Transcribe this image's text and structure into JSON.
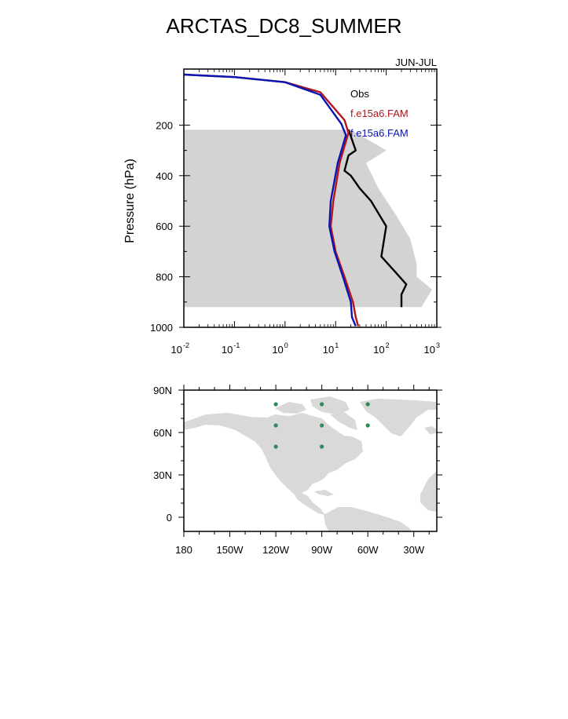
{
  "title": "ARCTAS_DC8_SUMMER",
  "chart_data": [
    {
      "type": "line",
      "title": "",
      "subtitle": "JUN-JUL",
      "xlabel": "",
      "ylabel": "Pressure (hPa)",
      "xscale": "log",
      "xlim": [
        0.01,
        1000
      ],
      "ylim": [
        1000,
        0
      ],
      "xticks": [
        0.01,
        0.1,
        1,
        10,
        100,
        1000
      ],
      "xtick_labels": [
        {
          "base": "10",
          "exp": "-2"
        },
        {
          "base": "10",
          "exp": "-1"
        },
        {
          "base": "10",
          "exp": "0"
        },
        {
          "base": "10",
          "exp": "1"
        },
        {
          "base": "10",
          "exp": "2"
        },
        {
          "base": "10",
          "exp": "3"
        }
      ],
      "yticks": [
        200,
        400,
        600,
        800,
        1000
      ],
      "legend": [
        "Obs",
        "f.e15a6.FAM",
        "f.e15a6.FAM"
      ],
      "legend_position": "top-right",
      "shaded_range": {
        "name": "Obs range",
        "color": "#d3d3d3",
        "p": [
          218,
          300,
          350,
          450,
          550,
          650,
          750,
          800,
          850,
          920
        ],
        "min": [
          0.01,
          0.01,
          0.01,
          0.01,
          0.01,
          0.01,
          0.01,
          0.01,
          0.01,
          0.01
        ],
        "max": [
          20,
          100,
          40,
          70,
          150,
          300,
          400,
          400,
          800,
          500
        ]
      },
      "series": [
        {
          "name": "Obs",
          "color": "#000000",
          "x": [
            18,
            25,
            18,
            15,
            20,
            30,
            50,
            100,
            80,
            150,
            250,
            200,
            200
          ],
          "p": [
            218,
            300,
            320,
            380,
            400,
            450,
            500,
            600,
            720,
            780,
            830,
            870,
            920
          ]
        },
        {
          "name": "f.e15a6.FAM",
          "color": "#b0161d",
          "x": [
            0.01,
            0.1,
            1,
            5,
            15,
            18,
            12,
            9,
            8,
            10,
            15,
            22,
            25,
            28
          ],
          "p": [
            0,
            10,
            30,
            70,
            180,
            230,
            350,
            500,
            600,
            700,
            800,
            900,
            960,
            995
          ]
        },
        {
          "name": "f.e15a6.FAM",
          "color": "#0a14b4",
          "x": [
            0.01,
            0.1,
            1,
            5,
            13,
            16,
            11,
            8,
            7.5,
            9.5,
            14,
            20,
            21,
            25
          ],
          "p": [
            0,
            10,
            30,
            80,
            195,
            240,
            350,
            500,
            600,
            700,
            800,
            900,
            960,
            995
          ]
        }
      ]
    },
    {
      "type": "scatter",
      "title": "",
      "xlabel": "",
      "ylabel": "",
      "xlim": [
        -180,
        -15
      ],
      "ylim": [
        -10,
        90
      ],
      "xtick_labels": [
        {
          "value": -180,
          "label": "180"
        },
        {
          "value": -150,
          "label": "150W"
        },
        {
          "value": -120,
          "label": "120W"
        },
        {
          "value": -90,
          "label": "90W"
        },
        {
          "value": -60,
          "label": "60W"
        },
        {
          "value": -30,
          "label": "30W"
        }
      ],
      "ytick_labels": [
        {
          "value": 90,
          "label": "90N"
        },
        {
          "value": 60,
          "label": "60N"
        },
        {
          "value": 30,
          "label": "30N"
        },
        {
          "value": 0,
          "label": "0"
        }
      ],
      "land_color": "#d9d9d9",
      "point_color": "#2e8b57",
      "points": [
        {
          "lon": -120,
          "lat": 80
        },
        {
          "lon": -90,
          "lat": 80
        },
        {
          "lon": -60,
          "lat": 80
        },
        {
          "lon": -120,
          "lat": 65
        },
        {
          "lon": -90,
          "lat": 65
        },
        {
          "lon": -60,
          "lat": 65
        },
        {
          "lon": -120,
          "lat": 50
        },
        {
          "lon": -90,
          "lat": 50
        }
      ]
    }
  ]
}
